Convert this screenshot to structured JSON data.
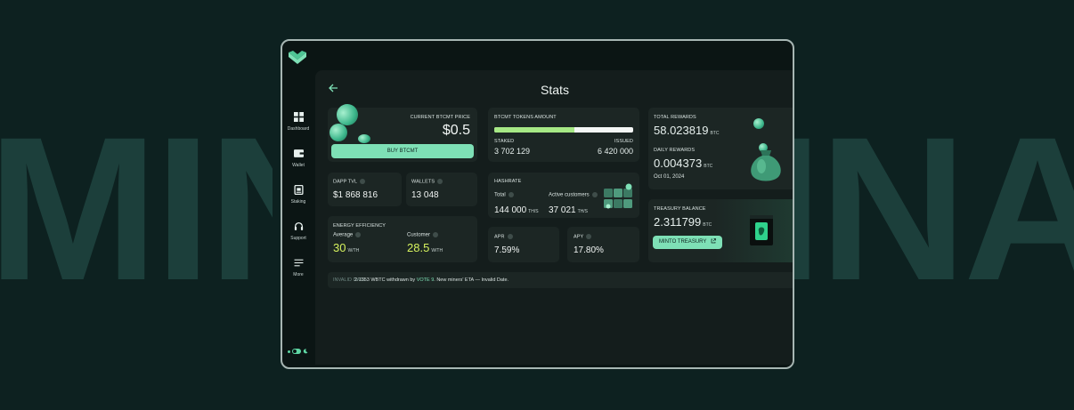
{
  "background_text": {
    "left": "MIN",
    "right": "INA"
  },
  "colors": {
    "accent": "#7ee0b6",
    "background": "#0d2120",
    "panel": "#141d1c",
    "card": "#1c2624",
    "highlight": "#d6f25e"
  },
  "sidebar": {
    "items": [
      {
        "label": "Dashboard",
        "icon": "grid-icon"
      },
      {
        "label": "Wallet",
        "icon": "wallet-icon"
      },
      {
        "label": "Staking",
        "icon": "staking-icon"
      },
      {
        "label": "Support",
        "icon": "headset-icon"
      },
      {
        "label": "More",
        "icon": "menu-icon"
      }
    ]
  },
  "header": {
    "title": "Stats"
  },
  "price_card": {
    "label": "CURRENT BTCMT PRICE",
    "value": "$0.5",
    "button": "BUY BTCMT"
  },
  "tokens_card": {
    "label": "BTCMT TOKENS AMOUNT",
    "staked_label": "STAKED",
    "issued_label": "ISSUED",
    "staked": "3 702 129",
    "issued": "6 420 000",
    "staked_fraction": 0.577
  },
  "dapp_tvl": {
    "label": "DAPP TVL",
    "value": "$1 868 816"
  },
  "wallets": {
    "label": "WALLETS",
    "value": "13 048"
  },
  "hashrate": {
    "label": "HASHRATE",
    "total_label": "Total",
    "total": "144 000",
    "total_unit": "TH/S",
    "customers_label": "Active customers",
    "customers": "37 021",
    "customers_unit": "TH/S"
  },
  "energy": {
    "label": "ENERGY EFFICIENCY",
    "avg_label": "Average",
    "avg": "30",
    "avg_unit": "W/TH",
    "cust_label": "Customer",
    "cust": "28.5",
    "cust_unit": "W/TH"
  },
  "apr": {
    "label": "APR",
    "value": "7.59%"
  },
  "apy": {
    "label": "APY",
    "value": "17.80%"
  },
  "rewards": {
    "total_label": "TOTAL REWARDS",
    "total": "58.023819",
    "total_unit": "BTC",
    "daily_label": "DAILY REWARDS",
    "daily": "0.004373",
    "daily_unit": "BTC",
    "date": "Oct 01, 2024"
  },
  "treasury": {
    "label": "TREASURY BALANCE",
    "value": "2.311799",
    "unit": "BTC",
    "button": "MINTO TREASURY"
  },
  "ticker": {
    "tag": "INVALID DATE",
    "text_a": "2.1353 WBTC withdrawn by ",
    "vote": "VOTE 9",
    "text_b": ". New miners' ETA — Invalid Date."
  }
}
